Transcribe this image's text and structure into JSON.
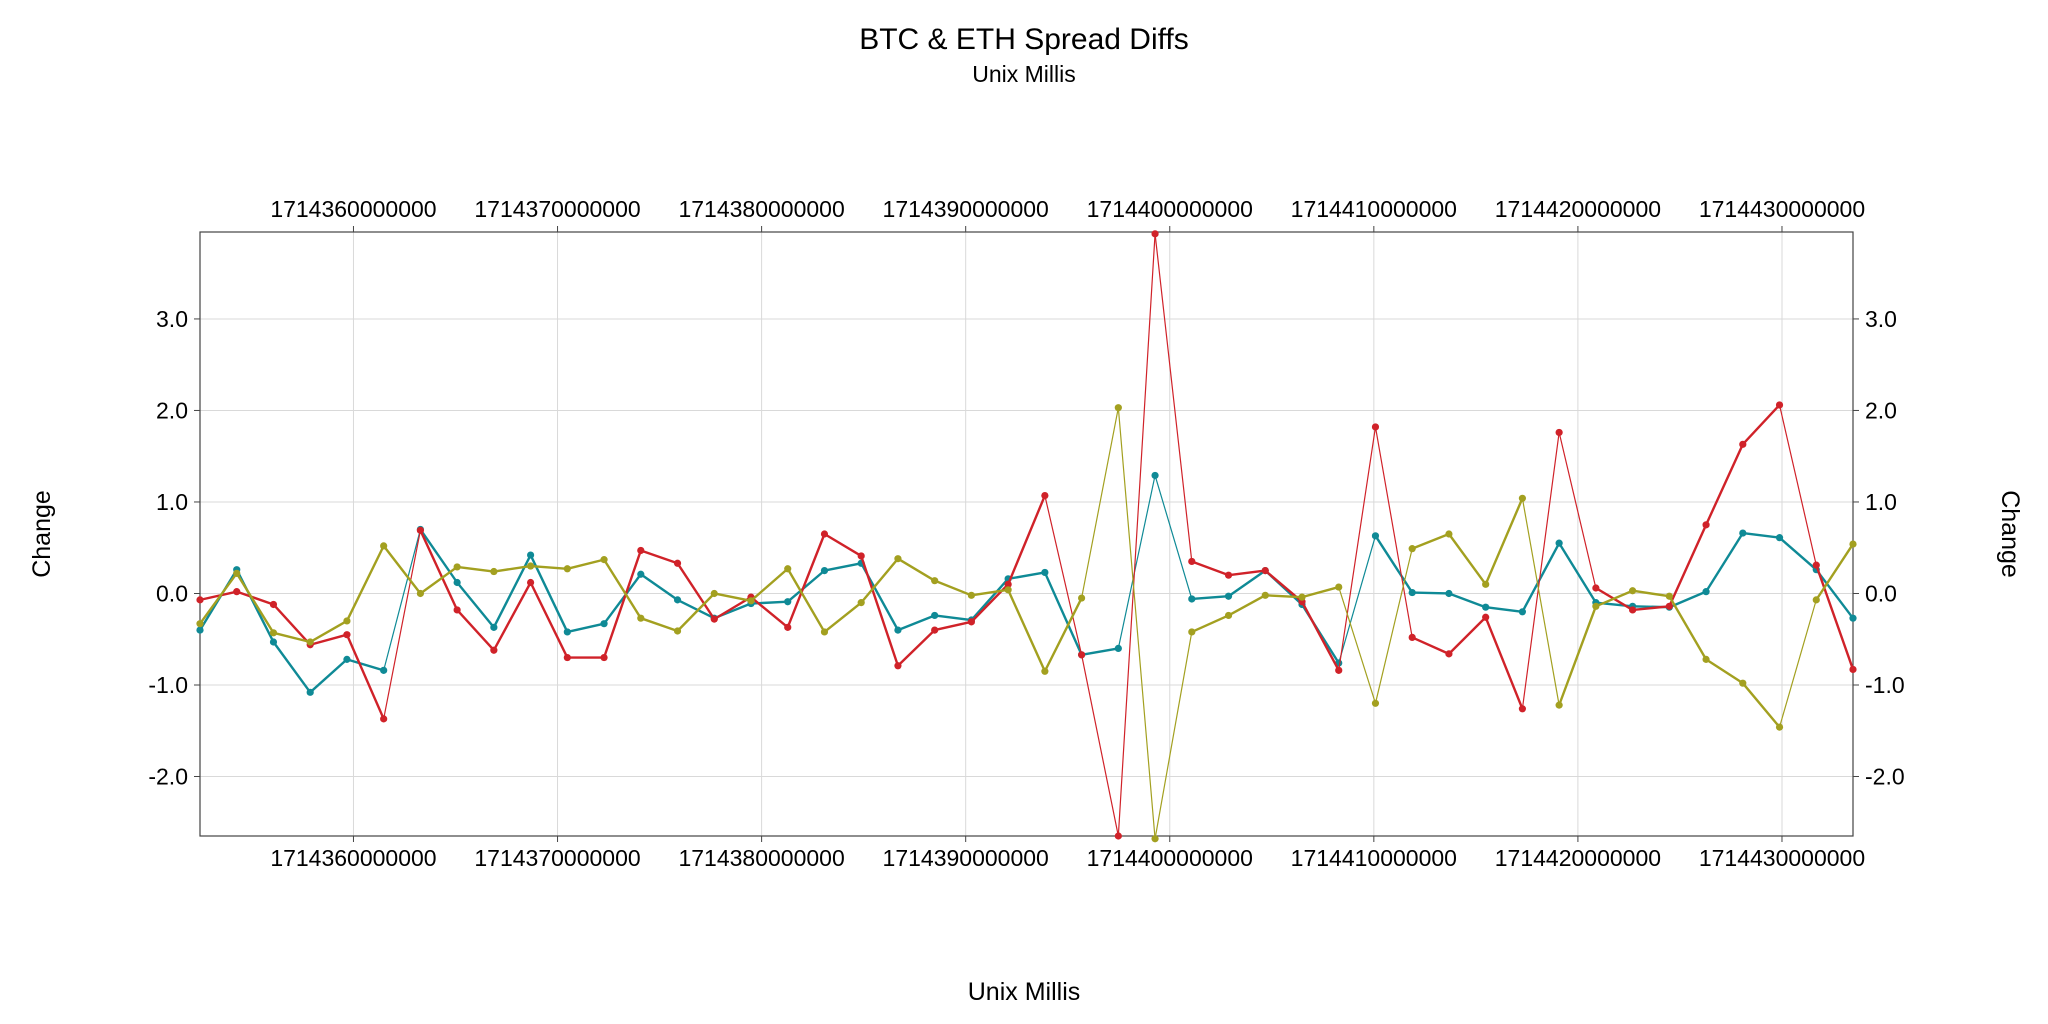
{
  "chart_data": {
    "type": "line",
    "title": "BTC & ETH Spread Diffs",
    "subtitle": "Unix Millis",
    "xlabel": "Unix Millis",
    "ylabel": "Change",
    "ylabel_right": "Change",
    "xlim": [
      1714352480000,
      1714433480000
    ],
    "ylim": [
      -2.65,
      3.95
    ],
    "x_ticks": [
      1714360000000,
      1714370000000,
      1714380000000,
      1714390000000,
      1714400000000,
      1714410000000,
      1714420000000,
      1714430000000
    ],
    "x_tick_labels": [
      "1714360000000",
      "1714370000000",
      "1714380000000",
      "1714390000000",
      "1714400000000",
      "1714410000000",
      "1714420000000",
      "1714430000000"
    ],
    "y_ticks": [
      -2.0,
      -1.0,
      0.0,
      1.0,
      2.0,
      3.0
    ],
    "y_tick_labels": [
      "-2.0",
      "-1.0",
      "0.0",
      "1.0",
      "2.0",
      "3.0"
    ],
    "grid": true,
    "legend": "none",
    "x": [
      1714352480000,
      1714354280000,
      1714356080000,
      1714357880000,
      1714359680000,
      1714361480000,
      1714363280000,
      1714365080000,
      1714366880000,
      1714368680000,
      1714370480000,
      1714372280000,
      1714374080000,
      1714375880000,
      1714377680000,
      1714379480000,
      1714381280000,
      1714383080000,
      1714384880000,
      1714386680000,
      1714388480000,
      1714390280000,
      1714392080000,
      1714393880000,
      1714395680000,
      1714397480000,
      1714399280000,
      1714401080000,
      1714402880000,
      1714404680000,
      1714406480000,
      1714408280000,
      1714410080000,
      1714411880000,
      1714413680000,
      1714415480000,
      1714417280000,
      1714419080000,
      1714420880000,
      1714422680000,
      1714424480000,
      1714426280000,
      1714428080000,
      1714429880000,
      1714431680000,
      1714433480000
    ],
    "series": [
      {
        "color": "#0f8a96",
        "values": [
          -0.4,
          0.26,
          -0.53,
          -1.08,
          -0.72,
          -0.84,
          0.7,
          0.12,
          -0.37,
          0.42,
          -0.42,
          -0.33,
          0.21,
          -0.07,
          -0.27,
          -0.11,
          -0.09,
          0.25,
          0.33,
          -0.4,
          -0.24,
          -0.29,
          0.16,
          0.23,
          -0.67,
          -0.6,
          1.29,
          -0.06,
          -0.03,
          0.25,
          -0.12,
          -0.76,
          0.63,
          0.01,
          0.0,
          -0.15,
          -0.2,
          0.55,
          -0.1,
          -0.14,
          -0.15,
          0.02,
          0.66,
          0.61,
          0.26,
          -0.27
        ]
      },
      {
        "color": "#d02229",
        "values": [
          -0.07,
          0.02,
          -0.12,
          -0.56,
          -0.45,
          -1.37,
          0.69,
          -0.18,
          -0.62,
          0.12,
          -0.7,
          -0.7,
          0.47,
          0.33,
          -0.28,
          -0.04,
          -0.37,
          0.65,
          0.41,
          -0.79,
          -0.4,
          -0.31,
          0.1,
          1.07,
          -0.67,
          -2.65,
          3.93,
          0.35,
          0.2,
          0.25,
          -0.09,
          -0.84,
          1.82,
          -0.48,
          -0.66,
          -0.26,
          -1.26,
          1.76,
          0.06,
          -0.18,
          -0.14,
          0.75,
          1.63,
          2.06,
          0.31,
          -0.83
        ]
      },
      {
        "color": "#a3a020",
        "values": [
          -0.33,
          0.22,
          -0.43,
          -0.53,
          -0.3,
          0.52,
          0.0,
          0.29,
          0.24,
          0.3,
          0.27,
          0.37,
          -0.27,
          -0.41,
          0.0,
          -0.08,
          0.27,
          -0.42,
          -0.1,
          0.38,
          0.14,
          -0.02,
          0.04,
          -0.85,
          -0.05,
          2.03,
          -2.68,
          -0.42,
          -0.24,
          -0.02,
          -0.04,
          0.07,
          -1.2,
          0.49,
          0.65,
          0.1,
          1.04,
          -1.22,
          -0.14,
          0.03,
          -0.03,
          -0.72,
          -0.98,
          -1.46,
          -0.07,
          0.54
        ]
      }
    ]
  }
}
